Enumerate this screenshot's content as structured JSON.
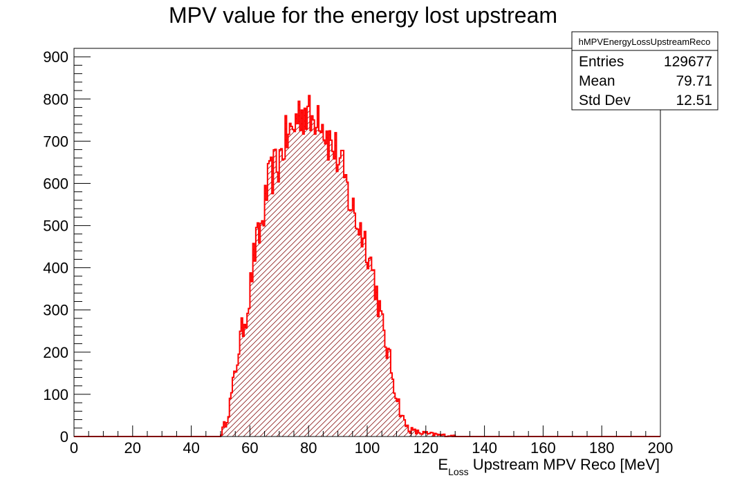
{
  "chart_data": {
    "type": "histogram",
    "title": "MPV value for the energy lost upstream",
    "xlabel_main": "E",
    "xlabel_sub": "Loss",
    "xlabel_rest": " Upstream MPV Reco [MeV]",
    "ylabel": "",
    "xlim": [
      0,
      200
    ],
    "ylim": [
      0,
      920
    ],
    "x_ticks": [
      0,
      20,
      40,
      60,
      80,
      100,
      120,
      140,
      160,
      180,
      200
    ],
    "y_ticks": [
      0,
      100,
      200,
      300,
      400,
      500,
      600,
      700,
      800,
      900
    ],
    "x_tick_labels": [
      "0",
      "20",
      "40",
      "60",
      "80",
      "100",
      "120",
      "140",
      "160",
      "180",
      "200"
    ],
    "y_tick_labels": [
      "0",
      "100",
      "200",
      "300",
      "400",
      "500",
      "600",
      "700",
      "800",
      "900"
    ],
    "bin_width": 0.5,
    "line_color": "#ff0000",
    "hatch_color": "#8b1a1a",
    "grid": false,
    "legend": "none",
    "stats_box": {
      "name": "hMPVEnergyLossUpstreamReco",
      "rows": [
        {
          "label": "Entries",
          "value": "129677"
        },
        {
          "label": "Mean",
          "value": "79.71"
        },
        {
          "label": "Std Dev",
          "value": "12.51"
        }
      ],
      "placement": "top-right"
    },
    "profile": {
      "description": "approximate smooth envelope of bin contents (x in MeV, y in counts)",
      "x": [
        50,
        51,
        52,
        53,
        54,
        55,
        56,
        57,
        58,
        59,
        60,
        61,
        62,
        63,
        64,
        65,
        66,
        67,
        68,
        69,
        70,
        71,
        72,
        73,
        74,
        75,
        76,
        77,
        78,
        79,
        80,
        81,
        82,
        83,
        84,
        85,
        86,
        87,
        88,
        89,
        90,
        91,
        92,
        93,
        94,
        95,
        96,
        97,
        98,
        99,
        100,
        101,
        102,
        103,
        104,
        105,
        106,
        107,
        108,
        109,
        110,
        111,
        112,
        113,
        114,
        115,
        116,
        117,
        118,
        119,
        120,
        121,
        122,
        123,
        124,
        125,
        126,
        127,
        128,
        129,
        130
      ],
      "y": [
        5,
        20,
        40,
        70,
        110,
        150,
        200,
        240,
        270,
        300,
        340,
        410,
        450,
        470,
        500,
        540,
        590,
        610,
        630,
        640,
        650,
        680,
        700,
        710,
        720,
        730,
        760,
        770,
        770,
        770,
        760,
        740,
        760,
        780,
        770,
        740,
        720,
        700,
        690,
        680,
        660,
        640,
        620,
        590,
        560,
        540,
        520,
        500,
        490,
        470,
        450,
        420,
        390,
        350,
        310,
        270,
        230,
        200,
        170,
        130,
        100,
        70,
        45,
        30,
        20,
        15,
        12,
        10,
        9,
        8,
        7,
        6,
        5,
        5,
        4,
        3,
        3,
        2,
        2,
        1,
        1
      ]
    }
  }
}
